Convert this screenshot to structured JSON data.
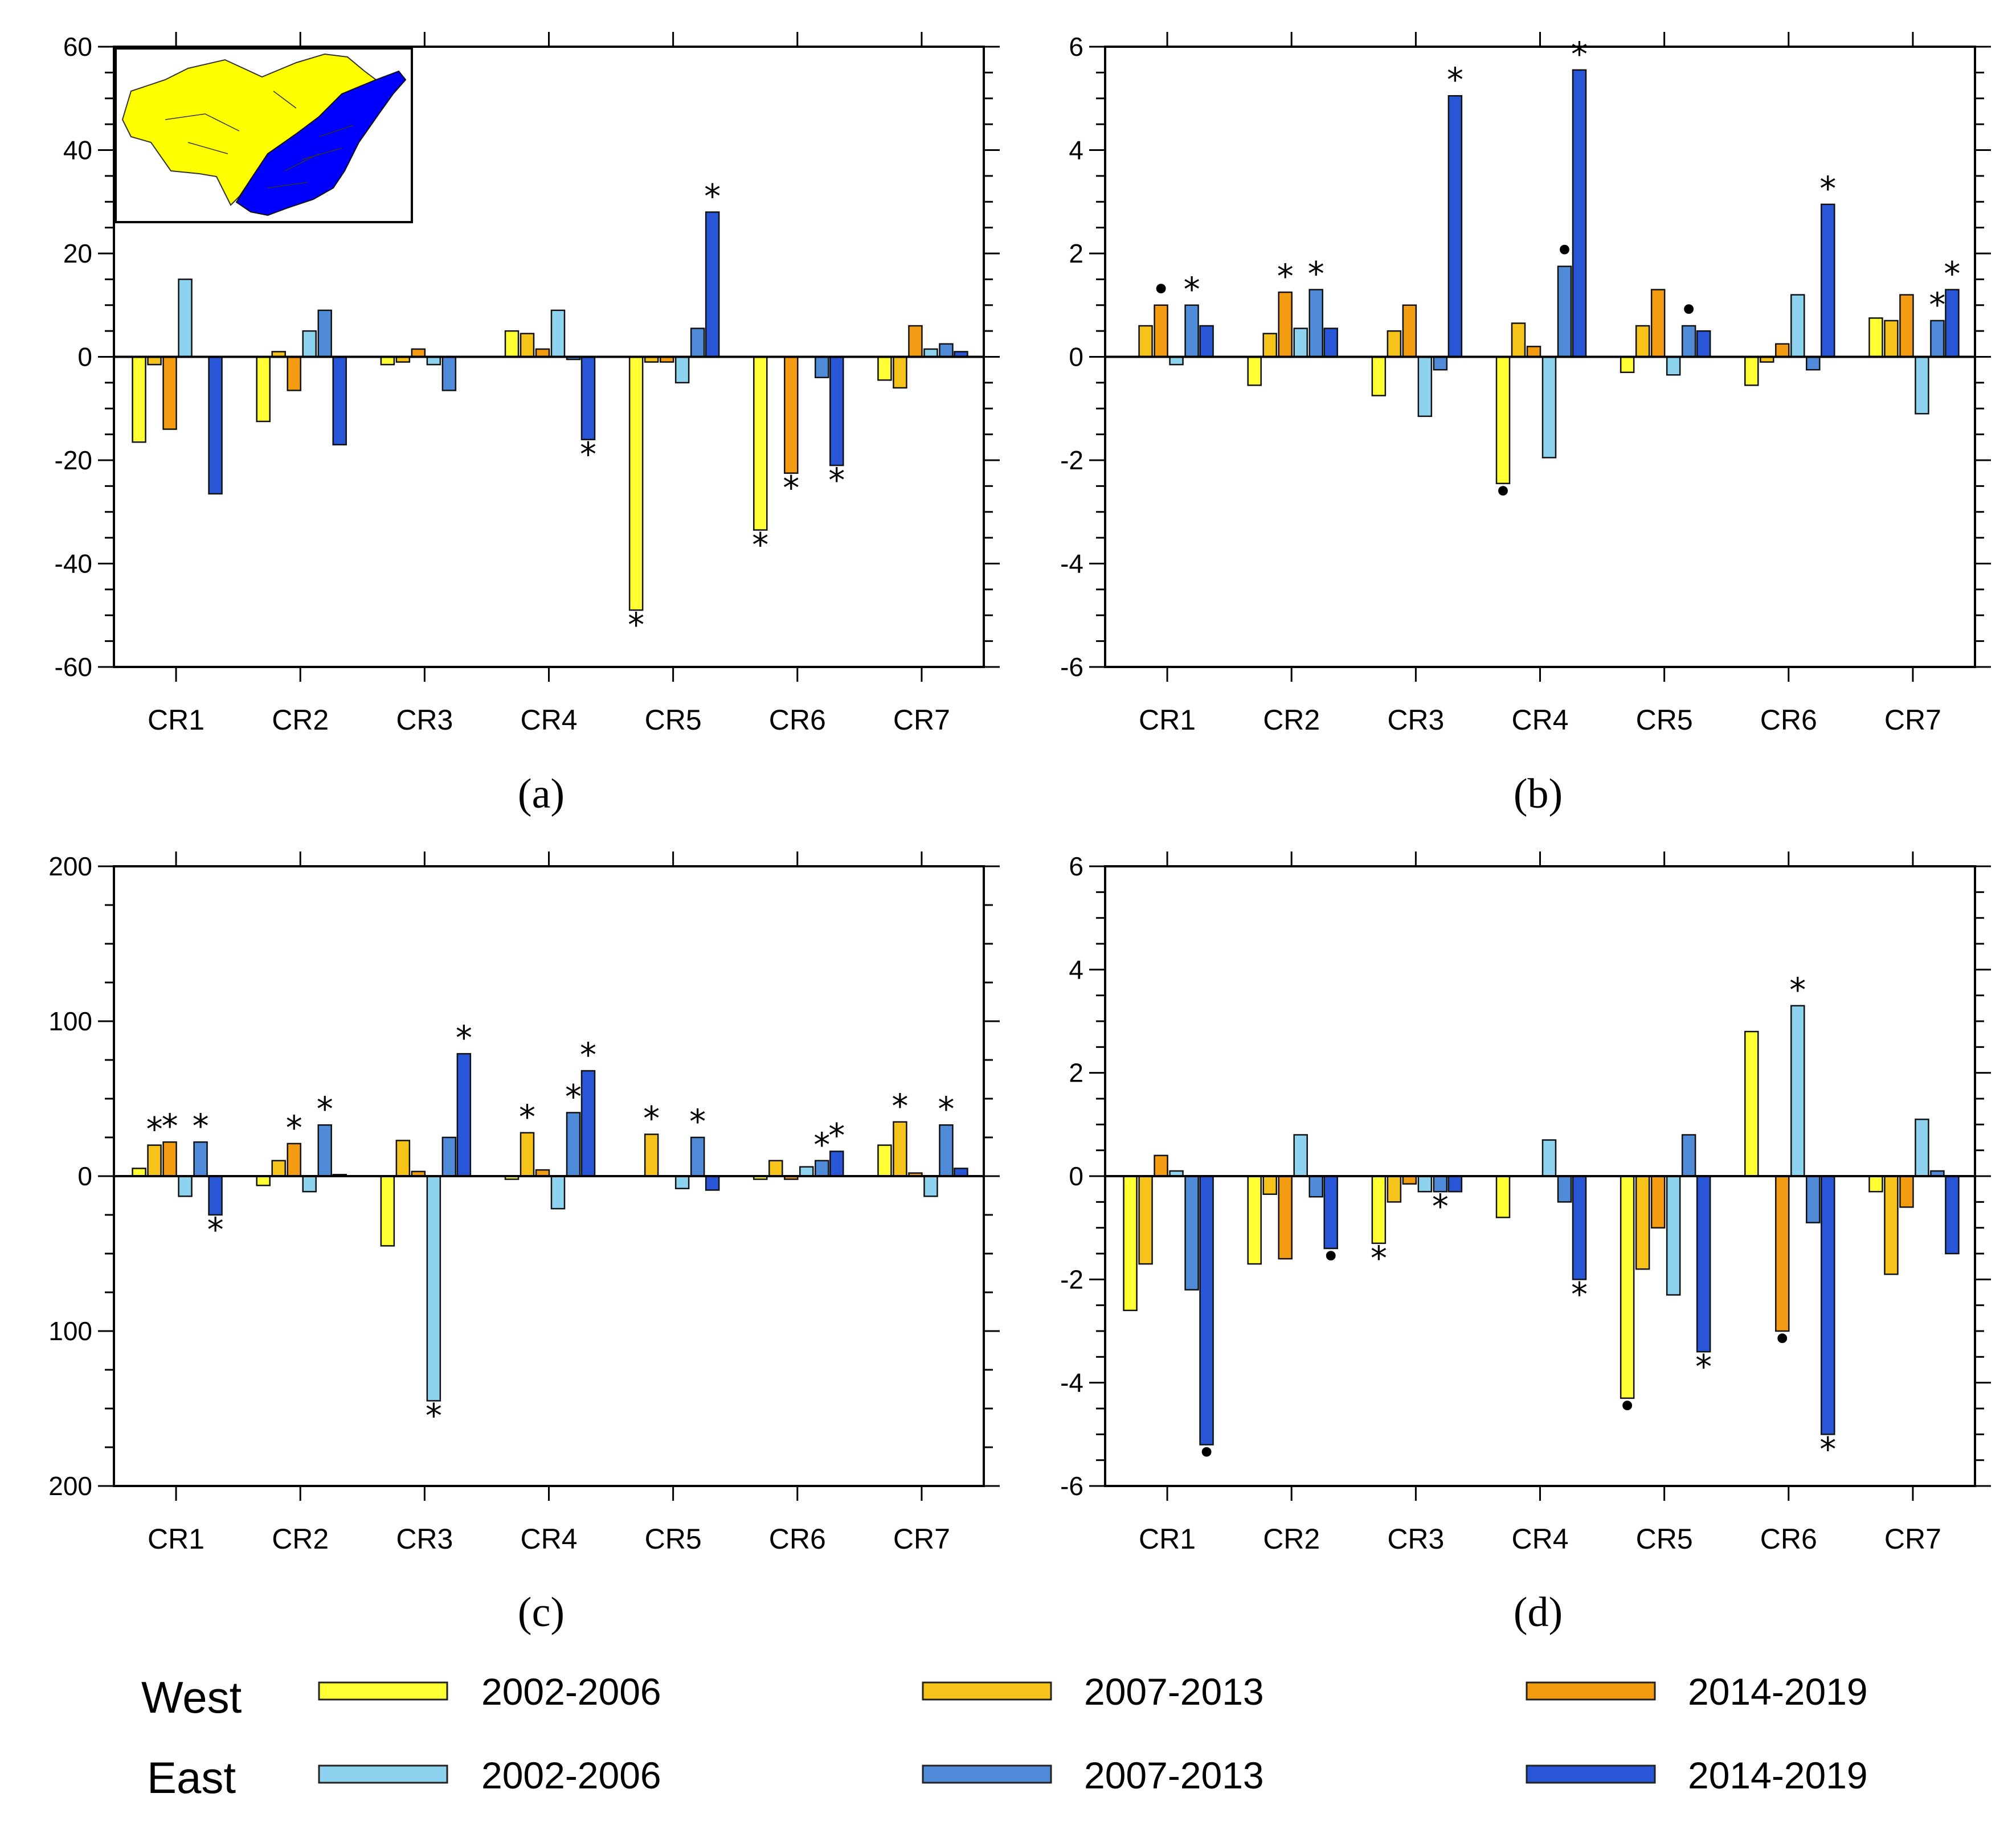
{
  "colors": {
    "West-2002-2006": "#ffff33",
    "West-2007-2013": "#f6c31b",
    "West-2014-2019": "#f39c12",
    "East-2002-2006": "#8dd3f0",
    "East-2007-2013": "#4f8bd9",
    "East-2014-2019": "#2856d6",
    "map_west": "#ffff00",
    "map_east": "#0000ff"
  },
  "legend": {
    "groups": [
      {
        "name": "West",
        "series": [
          "2002-2006",
          "2007-2013",
          "2014-2019"
        ]
      },
      {
        "name": "East",
        "series": [
          "2002-2006",
          "2007-2013",
          "2014-2019"
        ]
      }
    ]
  },
  "chart_data": [
    {
      "type": "bar",
      "panel_label": "(a)",
      "categories": [
        "CR1",
        "CR2",
        "CR3",
        "CR4",
        "CR5",
        "CR6",
        "CR7"
      ],
      "ylim": [
        -60,
        60
      ],
      "yticks": [
        "60",
        "40",
        "20",
        "0",
        "-20",
        "-40",
        "-60"
      ],
      "ytick_values": [
        60,
        40,
        20,
        0,
        -20,
        -40,
        -60
      ],
      "series": [
        {
          "name": "West 2002-2006",
          "key": "West-2002-2006",
          "values": [
            -16.5,
            -12.5,
            -1.5,
            5,
            -49,
            -33.5,
            -4.5
          ]
        },
        {
          "name": "West 2007-2013",
          "key": "West-2007-2013",
          "values": [
            -1.5,
            1,
            -1,
            4.5,
            -1,
            0,
            -6
          ]
        },
        {
          "name": "West 2014-2019",
          "key": "West-2014-2019",
          "values": [
            -14,
            -6.5,
            1.5,
            1.5,
            -1,
            -22.5,
            6
          ]
        },
        {
          "name": "East 2002-2006",
          "key": "East-2002-2006",
          "values": [
            15,
            5,
            -1.5,
            9,
            -5,
            0,
            1.5
          ]
        },
        {
          "name": "East 2007-2013",
          "key": "East-2007-2013",
          "values": [
            0,
            9,
            -6.5,
            -0.5,
            5.5,
            -4,
            2.5
          ]
        },
        {
          "name": "East 2014-2019",
          "key": "East-2014-2019",
          "values": [
            -26.5,
            -17,
            0,
            -16,
            28,
            -21,
            1
          ]
        }
      ],
      "markers": [
        {
          "cat": 3,
          "series": 5,
          "symbol": "*"
        },
        {
          "cat": 4,
          "series": 0,
          "symbol": "*"
        },
        {
          "cat": 4,
          "series": 5,
          "symbol": "*"
        },
        {
          "cat": 5,
          "series": 0,
          "symbol": "*"
        },
        {
          "cat": 5,
          "series": 2,
          "symbol": "*"
        },
        {
          "cat": 5,
          "series": 5,
          "symbol": "*"
        }
      ],
      "inset": "map"
    },
    {
      "type": "bar",
      "panel_label": "(b)",
      "categories": [
        "CR1",
        "CR2",
        "CR3",
        "CR4",
        "CR5",
        "CR6",
        "CR7"
      ],
      "ylim": [
        -6,
        6
      ],
      "yticks": [
        "6",
        "4",
        "2",
        "0",
        "-2",
        "-4",
        "-6"
      ],
      "ytick_values": [
        6,
        4,
        2,
        0,
        -2,
        -4,
        -6
      ],
      "series": [
        {
          "name": "West 2002-2006",
          "key": "West-2002-2006",
          "values": [
            0,
            -0.55,
            -0.75,
            -2.45,
            -0.3,
            -0.55,
            0.75
          ]
        },
        {
          "name": "West 2007-2013",
          "key": "West-2007-2013",
          "values": [
            0.6,
            0.45,
            0.5,
            0.65,
            0.6,
            -0.1,
            0.7
          ]
        },
        {
          "name": "West 2014-2019",
          "key": "West-2014-2019",
          "values": [
            1,
            1.25,
            1,
            0.2,
            1.3,
            0.25,
            1.2
          ]
        },
        {
          "name": "East 2002-2006",
          "key": "East-2002-2006",
          "values": [
            -0.15,
            0.55,
            -1.15,
            -1.95,
            -0.35,
            1.2,
            -1.1
          ]
        },
        {
          "name": "East 2007-2013",
          "key": "East-2007-2013",
          "values": [
            1,
            1.3,
            -0.25,
            1.75,
            0.6,
            -0.25,
            0.7
          ]
        },
        {
          "name": "East 2014-2019",
          "key": "East-2014-2019",
          "values": [
            0.6,
            0.55,
            5.05,
            5.55,
            0.5,
            2.95,
            1.3
          ]
        }
      ],
      "markers": [
        {
          "cat": 0,
          "series": 2,
          "symbol": "•"
        },
        {
          "cat": 0,
          "series": 4,
          "symbol": "*"
        },
        {
          "cat": 1,
          "series": 2,
          "symbol": "*"
        },
        {
          "cat": 1,
          "series": 4,
          "symbol": "*"
        },
        {
          "cat": 2,
          "series": 5,
          "symbol": "*"
        },
        {
          "cat": 3,
          "series": 0,
          "symbol": "•"
        },
        {
          "cat": 3,
          "series": 4,
          "symbol": "•"
        },
        {
          "cat": 3,
          "series": 5,
          "symbol": "*"
        },
        {
          "cat": 4,
          "series": 4,
          "symbol": "•"
        },
        {
          "cat": 5,
          "series": 5,
          "symbol": "*"
        },
        {
          "cat": 6,
          "series": 4,
          "symbol": "*"
        },
        {
          "cat": 6,
          "series": 5,
          "symbol": "*"
        }
      ]
    },
    {
      "type": "bar",
      "panel_label": "(c)",
      "categories": [
        "CR1",
        "CR2",
        "CR3",
        "CR4",
        "CR5",
        "CR6",
        "CR7"
      ],
      "ylim": [
        -200,
        200
      ],
      "yticks": [
        "200",
        "100",
        "0",
        "100",
        "200"
      ],
      "ytick_values": [
        200,
        100,
        0,
        -100,
        -200
      ],
      "series": [
        {
          "name": "West 2002-2006",
          "key": "West-2002-2006",
          "values": [
            5,
            -6,
            -45,
            -2,
            0,
            -2,
            20
          ]
        },
        {
          "name": "West 2007-2013",
          "key": "West-2007-2013",
          "values": [
            20,
            10,
            23,
            28,
            27,
            10,
            35
          ]
        },
        {
          "name": "West 2014-2019",
          "key": "West-2014-2019",
          "values": [
            22,
            21,
            3,
            4,
            0,
            -2,
            2
          ]
        },
        {
          "name": "East 2002-2006",
          "key": "East-2002-2006",
          "values": [
            -13,
            -10,
            -145,
            -21,
            -8,
            6,
            -13
          ]
        },
        {
          "name": "East 2007-2013",
          "key": "East-2007-2013",
          "values": [
            22,
            33,
            25,
            41,
            25,
            10,
            33
          ]
        },
        {
          "name": "East 2014-2019",
          "key": "East-2014-2019",
          "values": [
            -25,
            1,
            79,
            68,
            -9,
            16,
            5
          ]
        }
      ],
      "markers": [
        {
          "cat": 0,
          "series": 1,
          "symbol": "*"
        },
        {
          "cat": 0,
          "series": 2,
          "symbol": "*"
        },
        {
          "cat": 0,
          "series": 4,
          "symbol": "*"
        },
        {
          "cat": 0,
          "series": 5,
          "symbol": "*"
        },
        {
          "cat": 1,
          "series": 2,
          "symbol": "*"
        },
        {
          "cat": 1,
          "series": 4,
          "symbol": "*"
        },
        {
          "cat": 2,
          "series": 3,
          "symbol": "*"
        },
        {
          "cat": 2,
          "series": 5,
          "symbol": "*"
        },
        {
          "cat": 3,
          "series": 1,
          "symbol": "*"
        },
        {
          "cat": 3,
          "series": 4,
          "symbol": "*"
        },
        {
          "cat": 3,
          "series": 5,
          "symbol": "*"
        },
        {
          "cat": 4,
          "series": 1,
          "symbol": "*"
        },
        {
          "cat": 4,
          "series": 4,
          "symbol": "*"
        },
        {
          "cat": 5,
          "series": 4,
          "symbol": "*"
        },
        {
          "cat": 5,
          "series": 5,
          "symbol": "*"
        },
        {
          "cat": 6,
          "series": 1,
          "symbol": "*"
        },
        {
          "cat": 6,
          "series": 4,
          "symbol": "*"
        }
      ]
    },
    {
      "type": "bar",
      "panel_label": "(d)",
      "categories": [
        "CR1",
        "CR2",
        "CR3",
        "CR4",
        "CR5",
        "CR6",
        "CR7"
      ],
      "ylim": [
        -6,
        6
      ],
      "yticks": [
        "6",
        "4",
        "2",
        "0",
        "-2",
        "-4",
        "-6"
      ],
      "ytick_values": [
        6,
        4,
        2,
        0,
        -2,
        -4,
        -6
      ],
      "series": [
        {
          "name": "West 2002-2006",
          "key": "West-2002-2006",
          "values": [
            -2.6,
            -1.7,
            -1.3,
            -0.8,
            -4.3,
            2.8,
            -0.3
          ]
        },
        {
          "name": "West 2007-2013",
          "key": "West-2007-2013",
          "values": [
            -1.7,
            -0.35,
            -0.5,
            0,
            -1.8,
            0,
            -1.9
          ]
        },
        {
          "name": "West 2014-2019",
          "key": "West-2014-2019",
          "values": [
            0.4,
            -1.6,
            -0.15,
            0,
            -1,
            -3,
            -0.6
          ]
        },
        {
          "name": "East 2002-2006",
          "key": "East-2002-2006",
          "values": [
            0.1,
            0.8,
            -0.3,
            0.7,
            -2.3,
            3.3,
            1.1
          ]
        },
        {
          "name": "East 2007-2013",
          "key": "East-2007-2013",
          "values": [
            -2.2,
            -0.4,
            -0.3,
            -0.5,
            0.8,
            -0.9,
            0.1
          ]
        },
        {
          "name": "East 2014-2019",
          "key": "East-2014-2019",
          "values": [
            -5.2,
            -1.4,
            -0.3,
            -2,
            -3.4,
            -5,
            -1.5
          ]
        }
      ],
      "markers": [
        {
          "cat": 0,
          "series": 5,
          "symbol": "•"
        },
        {
          "cat": 1,
          "series": 5,
          "symbol": "•"
        },
        {
          "cat": 2,
          "series": 0,
          "symbol": "*"
        },
        {
          "cat": 2,
          "series": 4,
          "symbol": "*"
        },
        {
          "cat": 3,
          "series": 5,
          "symbol": "*"
        },
        {
          "cat": 4,
          "series": 0,
          "symbol": "•"
        },
        {
          "cat": 4,
          "series": 5,
          "symbol": "*"
        },
        {
          "cat": 5,
          "series": 2,
          "symbol": "•"
        },
        {
          "cat": 5,
          "series": 3,
          "symbol": "*"
        },
        {
          "cat": 5,
          "series": 5,
          "symbol": "*"
        }
      ]
    }
  ]
}
